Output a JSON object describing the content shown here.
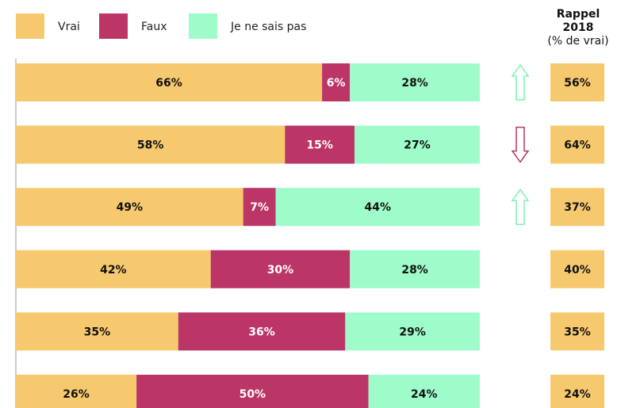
{
  "chart_data": {
    "type": "bar",
    "orientation": "horizontal",
    "stacked": true,
    "xlim": [
      0,
      100
    ],
    "series": [
      {
        "name": "Vrai",
        "color": "#f7c96e",
        "label_color": "#111111",
        "values": [
          66,
          58,
          49,
          42,
          35,
          26
        ],
        "value_labels": [
          "66%",
          "58%",
          "49%",
          "42%",
          "35%",
          "26%"
        ]
      },
      {
        "name": "Faux",
        "color": "#bb3566",
        "label_color": "#ffffff",
        "values": [
          6,
          15,
          7,
          30,
          36,
          50
        ],
        "value_labels": [
          "6%",
          "15%",
          "7%",
          "30%",
          "36%",
          "50%"
        ]
      },
      {
        "name": "Je ne sais pas",
        "color": "#9dfcc9",
        "label_color": "#111111",
        "values": [
          28,
          27,
          44,
          28,
          29,
          24
        ],
        "value_labels": [
          "28%",
          "27%",
          "44%",
          "28%",
          "29%",
          "24%"
        ]
      }
    ],
    "trend": [
      "up",
      "down",
      "up",
      null,
      null,
      null
    ],
    "trend_colors": {
      "up": "#7df0b0",
      "down": "#bb3566"
    },
    "recall": {
      "title": "Rappel 2018",
      "subtitle": "(% de vrai)",
      "color": "#f7c96e",
      "values": [
        56,
        64,
        37,
        40,
        35,
        24
      ],
      "value_labels": [
        "56%",
        "64%",
        "37%",
        "40%",
        "35%",
        "24%"
      ]
    }
  }
}
